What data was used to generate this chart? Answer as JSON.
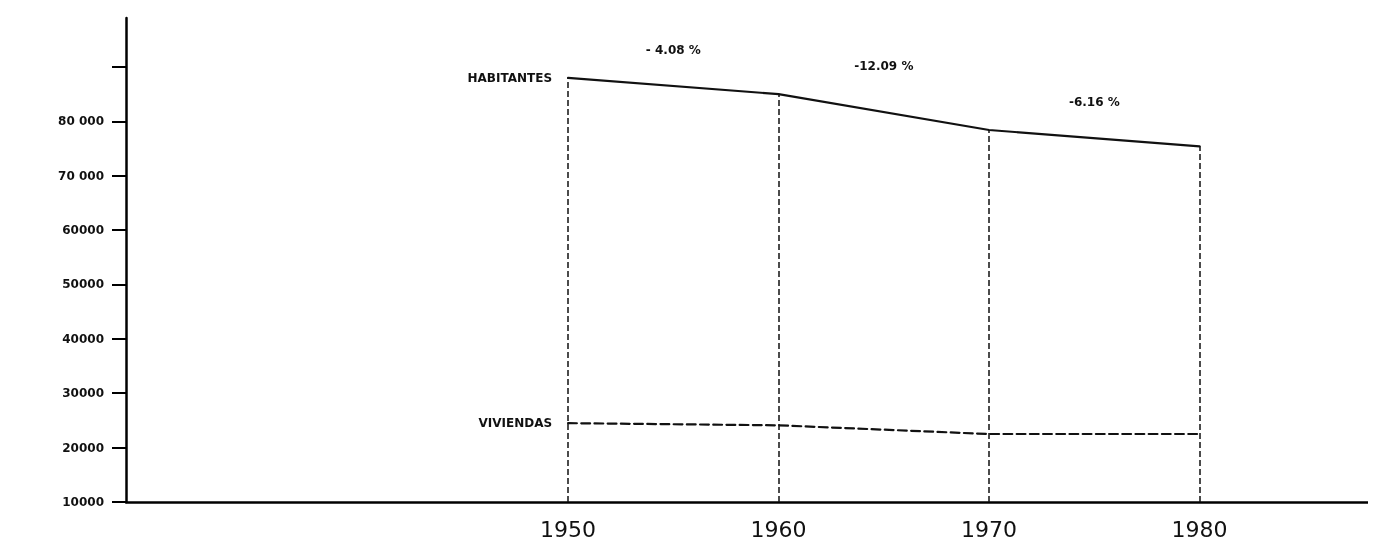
{
  "chart_data": {
    "type": "line",
    "x": [
      1950,
      1960,
      1970,
      1980
    ],
    "series": [
      {
        "name": "HABITANTES",
        "color": "#111111",
        "line_style": "solid",
        "values": [
          88000,
          85000,
          78400,
          75400
        ]
      },
      {
        "name": "VIVIENDAS",
        "color": "#111111",
        "line_style": "dashed",
        "values": [
          24500,
          24100,
          22500,
          22500
        ]
      }
    ],
    "xlim": [
      1929,
      1988
    ],
    "xticks": [
      1950,
      1960,
      1970,
      1980
    ],
    "ylim": [
      10000,
      99000
    ],
    "yticks": [
      {
        "value": 10000,
        "label": "10000"
      },
      {
        "value": 20000,
        "label": "20000"
      },
      {
        "value": 30000,
        "label": "30000"
      },
      {
        "value": 40000,
        "label": "40000"
      },
      {
        "value": 50000,
        "label": "50000"
      },
      {
        "value": 60000,
        "label": "60000"
      },
      {
        "value": 70000,
        "label": "70 000"
      },
      {
        "value": 80000,
        "label": "80 000"
      },
      {
        "value": 90000,
        "label": null
      }
    ],
    "ref_lines": [
      {
        "axis": "x",
        "value": 1950,
        "label": null,
        "line_style": "dashed"
      },
      {
        "axis": "x",
        "value": 1960,
        "label": null,
        "line_style": "dashed"
      },
      {
        "axis": "x",
        "value": 1970,
        "label": null,
        "line_style": "dashed"
      },
      {
        "axis": "x",
        "value": 1980,
        "label": null,
        "line_style": "dashed"
      }
    ],
    "annotations": [
      "- 4.08 %",
      "-12.09 %",
      "-6.16 %"
    ],
    "grid": false,
    "legend": false,
    "marker": "none"
  }
}
